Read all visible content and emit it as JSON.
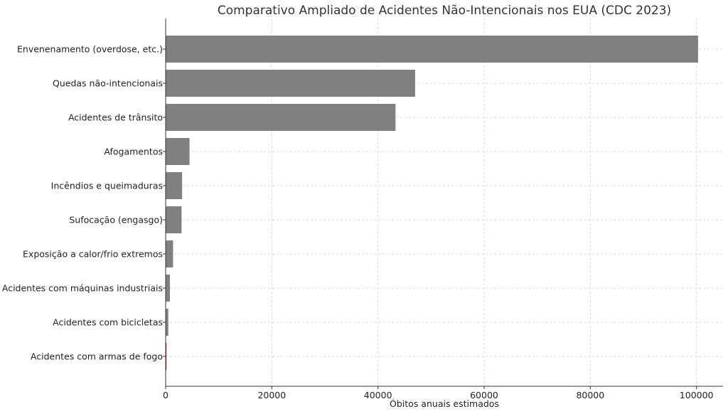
{
  "chart_data": {
    "type": "bar",
    "orientation": "horizontal",
    "title": "Comparativo Ampliado de Acidentes Não-Intencionais nos EUA (CDC 2023)",
    "xlabel": "Óbitos anuais estimados",
    "ylabel": "",
    "xlim": [
      0,
      105000
    ],
    "xticks": [
      0,
      20000,
      40000,
      60000,
      80000,
      100000
    ],
    "xtick_labels": [
      "0",
      "20000",
      "40000",
      "60000",
      "80000",
      "100000"
    ],
    "grid": true,
    "categories": [
      "Envenenamento (overdose, etc.)",
      "Quedas não-intencionais",
      "Acidentes de trânsito",
      "Afogamentos",
      "Incêndios e queimaduras",
      "Sufocação (engasgo)",
      "Exposição a calor/frio extremos",
      "Acidentes com máquinas industriais",
      "Acidentes com bicicletas",
      "Acidentes com armas de fogo"
    ],
    "values": [
      100300,
      47000,
      43300,
      4500,
      3100,
      3000,
      1400,
      800,
      500,
      100
    ],
    "colors": [
      "#808080",
      "#808080",
      "#808080",
      "#808080",
      "#808080",
      "#808080",
      "#808080",
      "#808080",
      "#808080",
      "#b22222"
    ]
  }
}
